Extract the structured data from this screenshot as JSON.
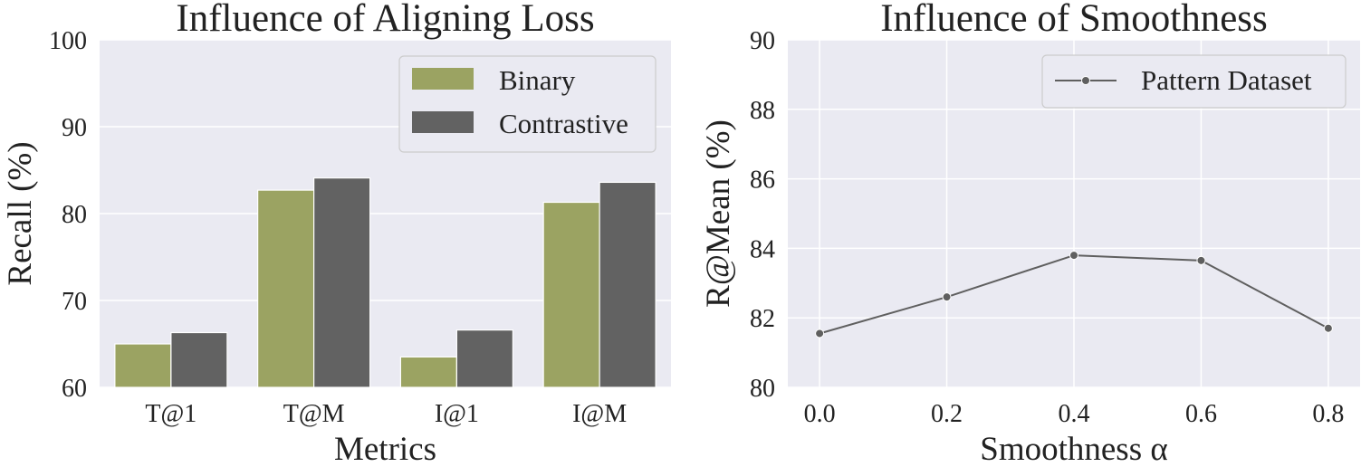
{
  "chart_data": [
    {
      "type": "bar",
      "title": "Influence of Aligning Loss",
      "xlabel": "Metrics",
      "ylabel": "Recall (%)",
      "ylim": [
        60,
        100
      ],
      "yticks": [
        60,
        70,
        80,
        90,
        100
      ],
      "categories": [
        "T@1",
        "T@M",
        "I@1",
        "I@M"
      ],
      "series": [
        {
          "name": "Binary",
          "values": [
            65.0,
            82.7,
            63.5,
            81.3
          ],
          "color": "#9ba362"
        },
        {
          "name": "Contrastive",
          "values": [
            66.3,
            84.1,
            66.6,
            83.6
          ],
          "color": "#626262"
        }
      ],
      "grid": true,
      "legend": "top-right",
      "background": "#eaeaf2"
    },
    {
      "type": "line",
      "title": "Influence of Smoothness",
      "xlabel": "Smoothness α",
      "ylabel": "R@Mean (%)",
      "ylim": [
        80,
        90
      ],
      "xlim": [
        -0.05,
        0.85
      ],
      "yticks": [
        80,
        82,
        84,
        86,
        88,
        90
      ],
      "xticks": [
        "0.0",
        "0.2",
        "0.4",
        "0.6",
        "0.8"
      ],
      "x": [
        0.0,
        0.2,
        0.4,
        0.6,
        0.8
      ],
      "series": [
        {
          "name": "Pattern Dataset",
          "values": [
            81.55,
            82.6,
            83.8,
            83.65,
            81.7
          ],
          "color": "#5f5f5f"
        }
      ],
      "grid": true,
      "legend": "top-right",
      "background": "#eaeaf2"
    }
  ]
}
